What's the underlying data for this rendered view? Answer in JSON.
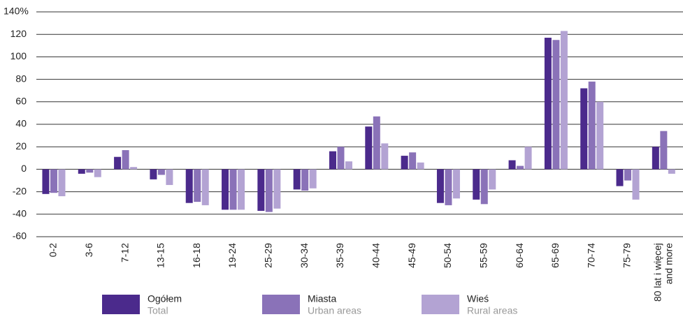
{
  "chart_data": {
    "type": "bar",
    "categories": [
      "0-2",
      "3-6",
      "7-12",
      "13-15",
      "16-18",
      "19-24",
      "25-29",
      "30-34",
      "35-39",
      "40-44",
      "45-49",
      "50-54",
      "55-59",
      "60-64",
      "65-69",
      "70-74",
      "75-79",
      "80 lat i więcej\nand more"
    ],
    "series": [
      {
        "name": "Ogółem",
        "name_en": "Total",
        "color": "#4b2a8c",
        "values": [
          -22,
          -4,
          11,
          -9,
          -30,
          -36,
          -37,
          -18,
          16,
          38,
          12,
          -30,
          -27,
          8,
          117,
          72,
          -15,
          20
        ]
      },
      {
        "name": "Miasta",
        "name_en": "Urban areas",
        "color": "#8a72b8",
        "values": [
          -21,
          -3,
          17,
          -5,
          -29,
          -36,
          -38,
          -19,
          20,
          47,
          15,
          -32,
          -31,
          3,
          115,
          78,
          -10,
          34
        ]
      },
      {
        "name": "Wieś",
        "name_en": "Rural areas",
        "color": "#b3a3d3",
        "values": [
          -24,
          -7,
          2,
          -14,
          -32,
          -36,
          -35,
          -17,
          7,
          23,
          6,
          -26,
          -18,
          20,
          123,
          60,
          -27,
          -4
        ]
      }
    ],
    "ylim": [
      -60,
      140
    ],
    "yticks": [
      -60,
      -40,
      -20,
      0,
      20,
      40,
      60,
      80,
      100,
      120,
      {
        "value": 140,
        "label": "140%"
      }
    ],
    "grid": true
  }
}
